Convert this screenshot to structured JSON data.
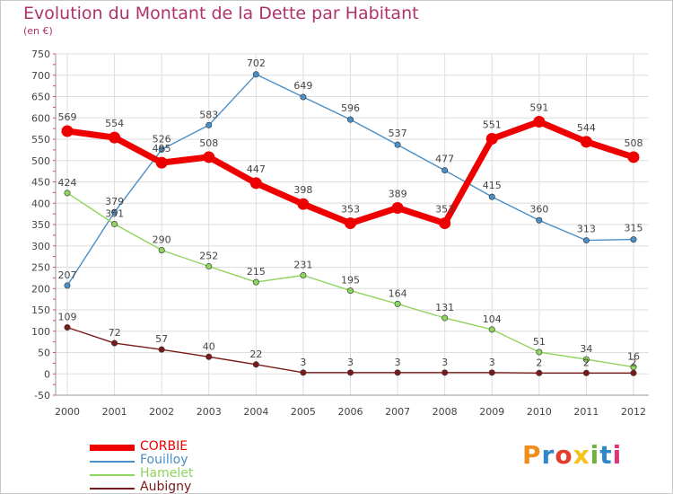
{
  "title": "Evolution du Montant de la Dette par Habitant",
  "unit": "(en €)",
  "logo": "Proxiti",
  "chart_data": {
    "type": "line",
    "x": [
      "2000",
      "2001",
      "2002",
      "2003",
      "2004",
      "2005",
      "2006",
      "2007",
      "2008",
      "2009",
      "2010",
      "2011",
      "2012"
    ],
    "ylim": [
      -50,
      750
    ],
    "yticks": [
      -50,
      0,
      50,
      100,
      150,
      200,
      250,
      300,
      350,
      400,
      450,
      500,
      550,
      600,
      650,
      700,
      750
    ],
    "grid": true,
    "legend": "bottom-left",
    "series": [
      {
        "name": "CORBIE",
        "color": "#ee0000",
        "values": [
          569,
          554,
          495,
          508,
          447,
          398,
          353,
          389,
          353,
          551,
          591,
          544,
          508
        ]
      },
      {
        "name": "Fouilloy",
        "color": "#4a8fc7",
        "values": [
          207,
          379,
          526,
          583,
          702,
          649,
          596,
          537,
          477,
          415,
          360,
          313,
          315
        ]
      },
      {
        "name": "Hamelet",
        "color": "#8fd45e",
        "values": [
          424,
          351,
          290,
          252,
          215,
          231,
          195,
          164,
          131,
          104,
          51,
          34,
          16
        ]
      },
      {
        "name": "Aubigny",
        "color": "#7a1a1a",
        "values": [
          109,
          72,
          57,
          40,
          22,
          3,
          3,
          3,
          3,
          3,
          2,
          2,
          2
        ]
      }
    ]
  }
}
